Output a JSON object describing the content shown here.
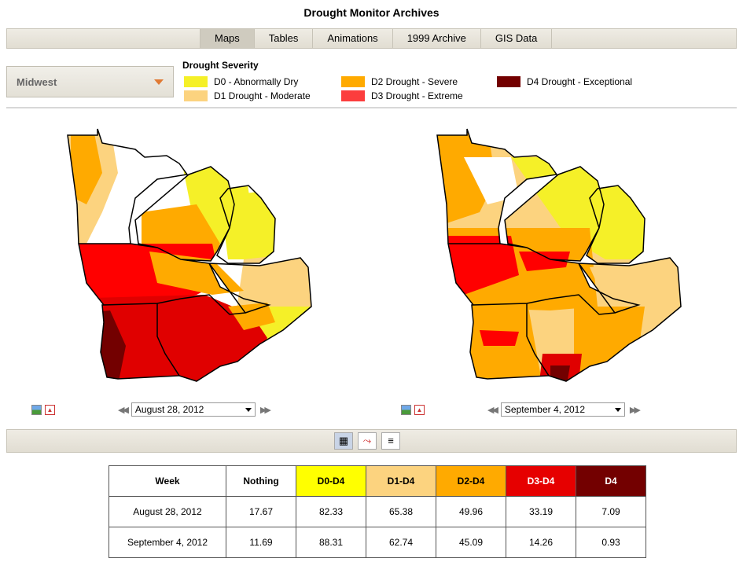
{
  "page_title": "Drought Monitor Archives",
  "nav": {
    "tabs": [
      {
        "label": "Maps",
        "active": true
      },
      {
        "label": "Tables",
        "active": false
      },
      {
        "label": "Animations",
        "active": false
      },
      {
        "label": "1999 Archive",
        "active": false
      },
      {
        "label": "GIS Data",
        "active": false
      }
    ]
  },
  "region_select": {
    "value": "Midwest"
  },
  "legend": {
    "title": "Drought Severity",
    "items": [
      {
        "label": "D0 - Abnormally Dry",
        "color": "#f5f028"
      },
      {
        "label": "D1 Drought - Moderate",
        "color": "#fcd37f"
      },
      {
        "label": "D2 Drought - Severe",
        "color": "#ffaa00"
      },
      {
        "label": "D3 Drought - Extreme",
        "color": "#fc3d3d"
      },
      {
        "label": "D4 Drought - Exceptional",
        "color": "#730000"
      }
    ]
  },
  "maps": [
    {
      "date": "August 28, 2012",
      "prev_icon": "rewind-icon",
      "next_icon": "fast-forward-icon"
    },
    {
      "date": "September 4, 2012",
      "prev_icon": "rewind-icon",
      "next_icon": "fast-forward-icon"
    }
  ],
  "view_buttons": [
    "table-view-icon",
    "chart-view-icon",
    "text-view-icon"
  ],
  "table": {
    "headers": [
      "Week",
      "Nothing",
      "D0-D4",
      "D1-D4",
      "D2-D4",
      "D3-D4",
      "D4"
    ],
    "header_colors": [
      "#ffffff",
      "#ffffff",
      "#ffff00",
      "#fcd37f",
      "#ffaa00",
      "#e60000",
      "#730000"
    ],
    "rows": [
      [
        "August 28, 2012",
        "17.67",
        "82.33",
        "65.38",
        "49.96",
        "33.19",
        "7.09"
      ],
      [
        "September 4, 2012",
        "11.69",
        "88.31",
        "62.74",
        "45.09",
        "14.26",
        "0.93"
      ]
    ]
  }
}
